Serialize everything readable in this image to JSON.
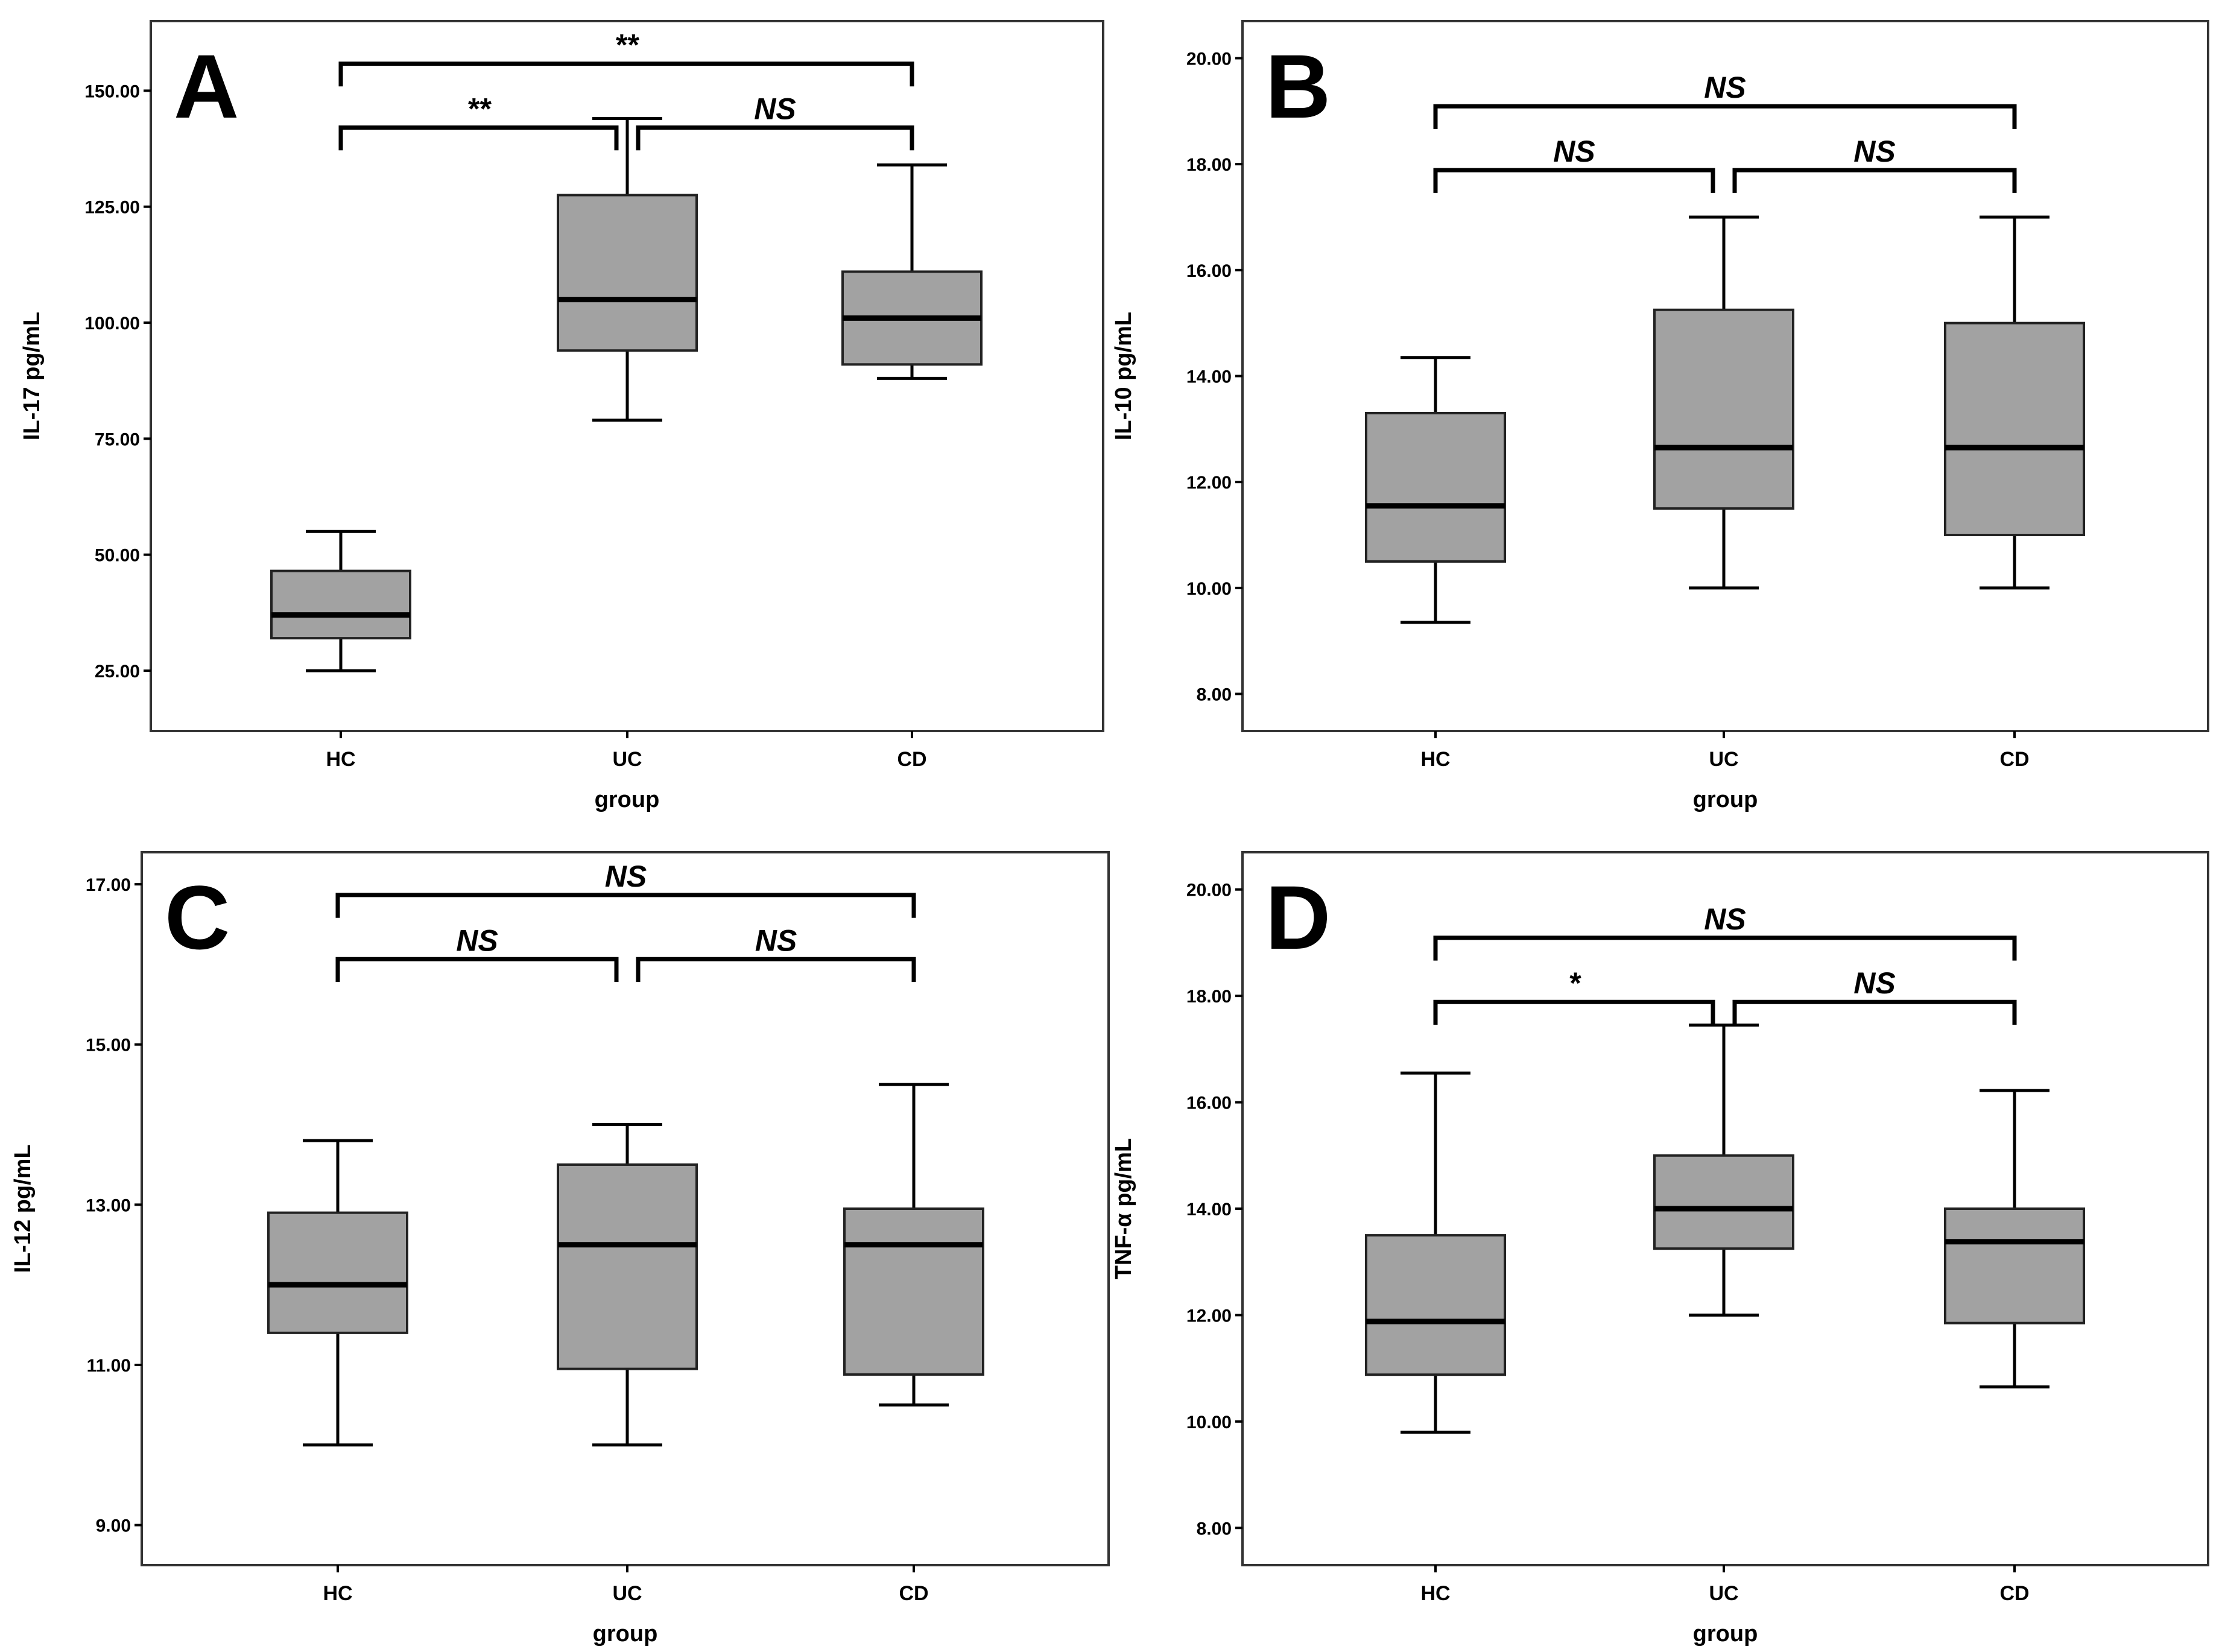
{
  "chart_data": [
    {
      "type": "box",
      "panel_label": "A",
      "xlabel": "group",
      "ylabel": "IL-17 pg/mL",
      "ylim": [
        12,
        165
      ],
      "yticks": [
        "25.00",
        "50.00",
        "75.00",
        "100.00",
        "125.00",
        "150.00"
      ],
      "categories": [
        "HC",
        "UC",
        "CD"
      ],
      "boxes": [
        {
          "category": "HC",
          "min": 25,
          "q1": 32,
          "median": 37,
          "q3": 46.5,
          "max": 55
        },
        {
          "category": "UC",
          "min": 79,
          "q1": 94,
          "median": 105,
          "q3": 127.5,
          "max": 144
        },
        {
          "category": "CD",
          "min": 88,
          "q1": 91,
          "median": 101,
          "q3": 111,
          "max": 134
        }
      ],
      "significance": [
        {
          "from": "HC",
          "to": "CD",
          "label": "**",
          "level": "upper"
        },
        {
          "from": "HC",
          "to": "UC",
          "label": "**",
          "level": "lower"
        },
        {
          "from": "UC",
          "to": "CD",
          "label": "NS",
          "level": "lower"
        }
      ]
    },
    {
      "type": "box",
      "panel_label": "B",
      "xlabel": "group",
      "ylabel": "IL-10 pg/mL",
      "ylim": [
        7.3,
        20.7
      ],
      "yticks": [
        "8.00",
        "10.00",
        "12.00",
        "14.00",
        "16.00",
        "18.00",
        "20.00"
      ],
      "categories": [
        "HC",
        "UC",
        "CD"
      ],
      "boxes": [
        {
          "category": "HC",
          "min": 9.35,
          "q1": 10.5,
          "median": 11.55,
          "q3": 13.3,
          "max": 14.35
        },
        {
          "category": "UC",
          "min": 10,
          "q1": 11.5,
          "median": 12.65,
          "q3": 15.25,
          "max": 17
        },
        {
          "category": "CD",
          "min": 10,
          "q1": 11,
          "median": 12.65,
          "q3": 15,
          "max": 17
        }
      ],
      "significance": [
        {
          "from": "HC",
          "to": "CD",
          "label": "NS",
          "level": "upper"
        },
        {
          "from": "HC",
          "to": "UC",
          "label": "NS",
          "level": "lower"
        },
        {
          "from": "UC",
          "to": "CD",
          "label": "NS",
          "level": "lower"
        }
      ]
    },
    {
      "type": "box",
      "panel_label": "C",
      "xlabel": "group",
      "ylabel": "IL-12 pg/mL",
      "ylim": [
        8.5,
        17.4
      ],
      "yticks": [
        "9.00",
        "11.00",
        "13.00",
        "15.00",
        "17.00"
      ],
      "categories": [
        "HC",
        "UC",
        "CD"
      ],
      "boxes": [
        {
          "category": "HC",
          "min": 10,
          "q1": 11.4,
          "median": 12,
          "q3": 12.9,
          "max": 13.8
        },
        {
          "category": "UC",
          "min": 10,
          "q1": 10.95,
          "median": 12.5,
          "q3": 13.5,
          "max": 14
        },
        {
          "category": "CD",
          "min": 10.5,
          "q1": 10.88,
          "median": 12.5,
          "q3": 12.95,
          "max": 14.5
        }
      ],
      "significance": [
        {
          "from": "HC",
          "to": "CD",
          "label": "NS",
          "level": "upper"
        },
        {
          "from": "HC",
          "to": "UC",
          "label": "NS",
          "level": "lower"
        },
        {
          "from": "UC",
          "to": "CD",
          "label": "NS",
          "level": "lower"
        }
      ]
    },
    {
      "type": "box",
      "panel_label": "D",
      "xlabel": "group",
      "ylabel": "TNF-α pg/mL",
      "ylim": [
        7.3,
        20.7
      ],
      "yticks": [
        "8.00",
        "10.00",
        "12.00",
        "14.00",
        "16.00",
        "18.00",
        "20.00"
      ],
      "categories": [
        "HC",
        "UC",
        "CD"
      ],
      "boxes": [
        {
          "category": "HC",
          "min": 9.8,
          "q1": 10.88,
          "median": 11.88,
          "q3": 13.5,
          "max": 16.55
        },
        {
          "category": "UC",
          "min": 12,
          "q1": 13.25,
          "median": 14,
          "q3": 15,
          "max": 17.45
        },
        {
          "category": "CD",
          "min": 10.65,
          "q1": 11.85,
          "median": 13.38,
          "q3": 14,
          "max": 16.22
        }
      ],
      "significance": [
        {
          "from": "HC",
          "to": "CD",
          "label": "NS",
          "level": "upper"
        },
        {
          "from": "HC",
          "to": "UC",
          "label": "*",
          "level": "lower"
        },
        {
          "from": "UC",
          "to": "CD",
          "label": "NS",
          "level": "lower"
        }
      ]
    }
  ]
}
